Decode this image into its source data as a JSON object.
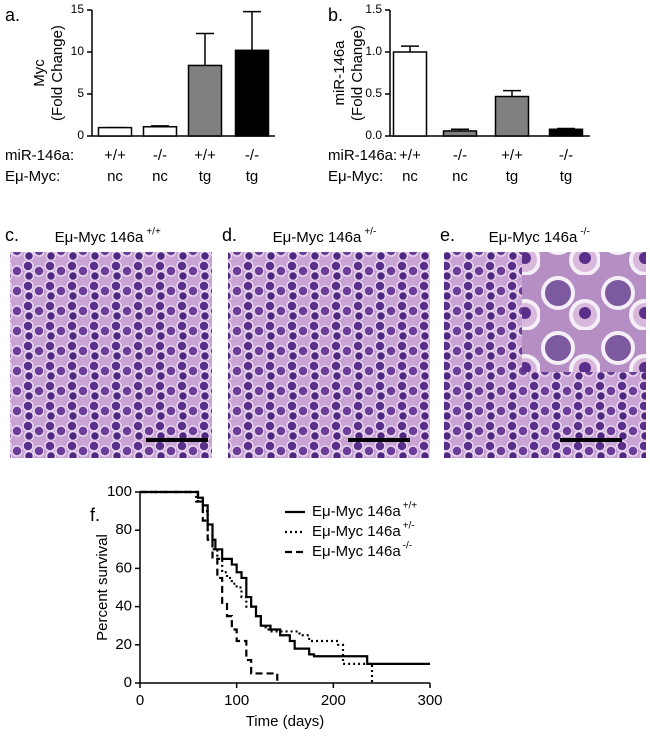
{
  "chart_data": [
    {
      "type": "bar",
      "panel": "a.",
      "y_label": [
        "Myc",
        "(Fold Change)"
      ],
      "row_labels": [
        "miR-146a:",
        "Eμ-Myc:"
      ],
      "categories": [
        [
          "+/+",
          "nc"
        ],
        [
          "-/-",
          "nc"
        ],
        [
          "+/+",
          "tg"
        ],
        [
          "-/-",
          "tg"
        ]
      ],
      "values": [
        1.0,
        1.1,
        8.4,
        10.2
      ],
      "errors": [
        0,
        0.1,
        3.8,
        4.6
      ],
      "colors": [
        "#ffffff",
        "#ffffff",
        "#808080",
        "#000000"
      ],
      "ylim": [
        0,
        15
      ],
      "yticks": [
        0,
        5,
        10,
        15
      ]
    },
    {
      "type": "bar",
      "panel": "b.",
      "y_label": [
        "miR-146a",
        "(Fold Change)"
      ],
      "row_labels": [
        "miR-146a:",
        "Eμ-Myc:"
      ],
      "categories": [
        [
          "+/+",
          "nc"
        ],
        [
          "-/-",
          "nc"
        ],
        [
          "+/+",
          "tg"
        ],
        [
          "-/-",
          "tg"
        ]
      ],
      "values": [
        1.0,
        0.06,
        0.47,
        0.08
      ],
      "errors": [
        0.07,
        0.02,
        0.07,
        0.01
      ],
      "colors": [
        "#ffffff",
        "#808080",
        "#808080",
        "#000000"
      ],
      "ylim": [
        0,
        1.5
      ],
      "yticks": [
        {
          "value": 0,
          "label": "0.0"
        },
        {
          "value": 0.5,
          "label": "0.5"
        },
        {
          "value": 1,
          "label": "1.0"
        },
        {
          "value": 1.5,
          "label": "1.5"
        }
      ]
    },
    {
      "type": "step",
      "panel": "f.",
      "y_label": "Percent survival",
      "x_label": "Time (days)",
      "xlim": [
        0,
        300
      ],
      "xticks": [
        0,
        100,
        200,
        300
      ],
      "ylim": [
        0,
        100
      ],
      "yticks": [
        0,
        20,
        40,
        60,
        80,
        100
      ],
      "series": [
        {
          "name": "Eμ-Myc 146a",
          "name_sup": "+/+",
          "color": "#000000",
          "dash": "solid",
          "x": [
            0,
            55,
            60,
            65,
            70,
            75,
            78,
            85,
            95,
            100,
            105,
            110,
            115,
            120,
            125,
            135,
            145,
            155,
            160,
            175,
            180,
            235,
            300
          ],
          "values": [
            100,
            100,
            97,
            93,
            83,
            75,
            70,
            65,
            62,
            58,
            55,
            45,
            40,
            35,
            30,
            28,
            25,
            22,
            18,
            15,
            14,
            10,
            10
          ]
        },
        {
          "name": "Eμ-Myc 146a",
          "name_sup": "+/-",
          "color": "#000000",
          "dash": "dotted",
          "x": [
            0,
            50,
            58,
            65,
            70,
            75,
            80,
            85,
            90,
            95,
            100,
            105,
            110,
            120,
            125,
            130,
            135,
            165,
            175,
            205,
            210,
            240
          ],
          "values": [
            100,
            100,
            95,
            90,
            80,
            70,
            65,
            58,
            55,
            52,
            50,
            45,
            40,
            35,
            30,
            28,
            27,
            25,
            22,
            20,
            10,
            0
          ]
        },
        {
          "name": "Eμ-Myc 146a",
          "name_sup": "-/-",
          "color": "#000000",
          "dash": "dashed",
          "x": [
            0,
            55,
            60,
            65,
            70,
            75,
            80,
            85,
            90,
            95,
            100,
            110,
            115,
            142
          ],
          "values": [
            100,
            100,
            95,
            85,
            75,
            65,
            55,
            42,
            35,
            28,
            22,
            12,
            5,
            0
          ]
        }
      ]
    }
  ],
  "images": [
    {
      "panel": "c.",
      "title": "Eμ-Myc 146a",
      "title_sup": "+/+"
    },
    {
      "panel": "d.",
      "title": "Eμ-Myc 146a",
      "title_sup": "+/-"
    },
    {
      "panel": "e.",
      "title": "Eμ-Myc 146a",
      "title_sup": "-/-"
    }
  ]
}
